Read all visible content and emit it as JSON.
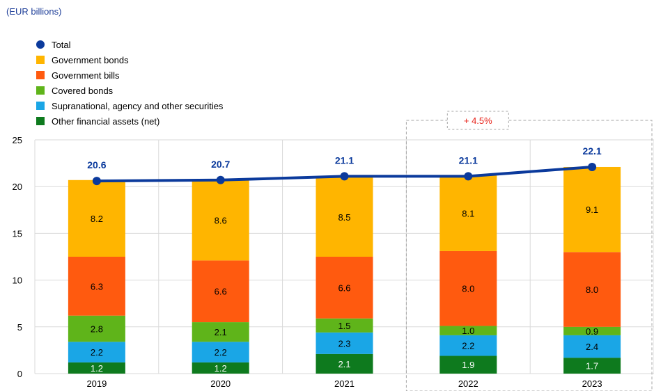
{
  "chart_data": {
    "type": "bar",
    "unit_label": "(EUR billions)",
    "categories": [
      "2019",
      "2020",
      "2021",
      "2022",
      "2023"
    ],
    "series": [
      {
        "name": "Other financial assets (net)",
        "values": [
          1.2,
          1.2,
          2.1,
          1.9,
          1.7
        ],
        "color": "#0e7a1e"
      },
      {
        "name": "Supranational, agency and other securities",
        "values": [
          2.2,
          2.2,
          2.3,
          2.2,
          2.4
        ],
        "color": "#1aa6e6"
      },
      {
        "name": "Covered bonds",
        "values": [
          2.8,
          2.1,
          1.5,
          1.0,
          0.9
        ],
        "color": "#5fb41a"
      },
      {
        "name": "Government bills",
        "values": [
          6.3,
          6.6,
          6.6,
          8.0,
          8.0
        ],
        "color": "#ff5a0f"
      },
      {
        "name": "Government bonds",
        "values": [
          8.2,
          8.6,
          8.5,
          8.1,
          9.1
        ],
        "color": "#ffb500"
      }
    ],
    "line_series": {
      "name": "Total",
      "values": [
        20.6,
        20.7,
        21.1,
        21.1,
        22.1
      ],
      "color": "#0b3a9c"
    },
    "legend_order": [
      "Total",
      "Government bonds",
      "Government bills",
      "Covered bonds",
      "Supranational, agency and other securities",
      "Other financial assets (net)"
    ],
    "yticks": [
      0,
      5,
      10,
      15,
      20,
      25
    ],
    "ylim": [
      0,
      25
    ],
    "annotation": {
      "text": "+ 4.5%",
      "color": "#e8231a"
    },
    "grid": true
  }
}
